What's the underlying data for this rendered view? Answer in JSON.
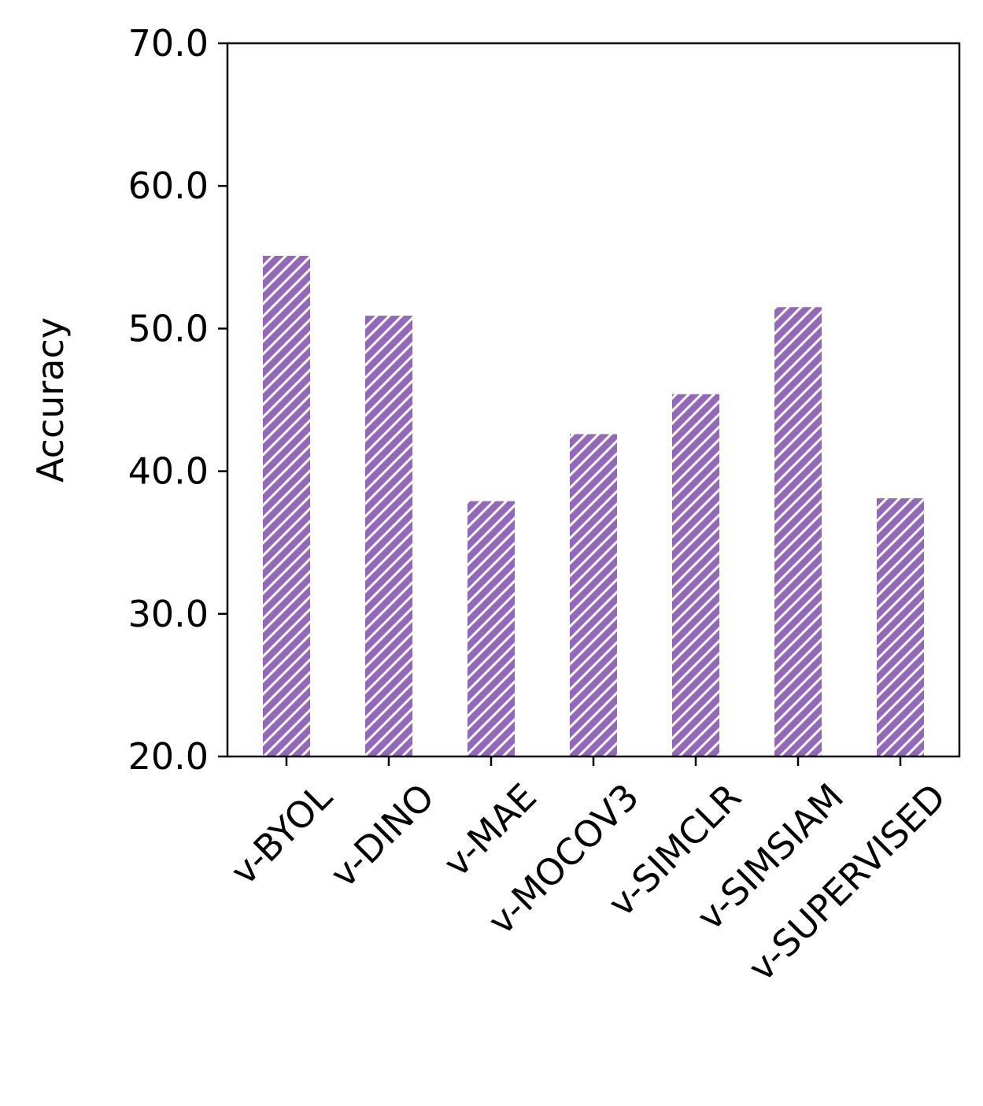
{
  "chart_data": {
    "type": "bar",
    "categories": [
      "v-BYOL",
      "v-DINO",
      "v-MAE",
      "v-MOCOV3",
      "v-SIMCLR",
      "v-SIMSIAM",
      "v-SUPERVISED"
    ],
    "values": [
      55.1,
      50.9,
      37.9,
      42.6,
      45.4,
      51.5,
      38.1
    ],
    "xlabel": "",
    "ylabel": "Accuracy",
    "ylim": [
      20,
      70
    ],
    "yticks": [
      20,
      30,
      40,
      50,
      60,
      70
    ],
    "ytick_labels": [
      "20.0",
      "30.0",
      "40.0",
      "50.0",
      "60.0",
      "70.0"
    ],
    "grid": false,
    "bar_color": "#9467bd",
    "hatch": "diagonal",
    "hatch_color": "#ffffff"
  }
}
